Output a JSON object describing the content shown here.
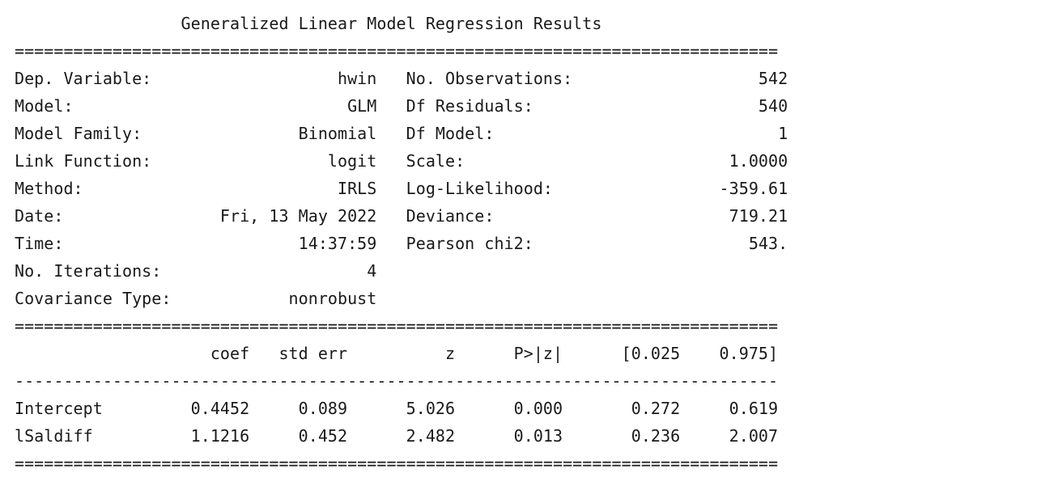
{
  "title": "Generalized Linear Model Regression Results",
  "separators": {
    "double": "==============================================================================",
    "single": "------------------------------------------------------------------------------"
  },
  "model_info": {
    "left": [
      {
        "label": "Dep. Variable:",
        "value": "hwin"
      },
      {
        "label": "Model:",
        "value": "GLM"
      },
      {
        "label": "Model Family:",
        "value": "Binomial"
      },
      {
        "label": "Link Function:",
        "value": "logit"
      },
      {
        "label": "Method:",
        "value": "IRLS"
      },
      {
        "label": "Date:",
        "value": "Fri, 13 May 2022"
      },
      {
        "label": "Time:",
        "value": "14:37:59"
      },
      {
        "label": "No. Iterations:",
        "value": "4"
      },
      {
        "label": "Covariance Type:",
        "value": "nonrobust"
      }
    ],
    "right": [
      {
        "label": "No. Observations:",
        "value": "542"
      },
      {
        "label": "Df Residuals:",
        "value": "540"
      },
      {
        "label": "Df Model:",
        "value": "1"
      },
      {
        "label": "Scale:",
        "value": "1.0000"
      },
      {
        "label": "Log-Likelihood:",
        "value": "-359.61"
      },
      {
        "label": "Deviance:",
        "value": "719.21"
      },
      {
        "label": "Pearson chi2:",
        "value": "543."
      }
    ]
  },
  "coefficients": {
    "headers": [
      "coef",
      "std err",
      "z",
      "P>|z|",
      "[0.025",
      "0.975]"
    ],
    "rows": [
      {
        "name": "Intercept",
        "values": [
          "0.4452",
          "0.089",
          "5.026",
          "0.000",
          "0.272",
          "0.619"
        ]
      },
      {
        "name": "lSaldiff",
        "values": [
          "1.1216",
          "0.452",
          "2.482",
          "0.013",
          "0.236",
          "2.007"
        ]
      }
    ]
  }
}
